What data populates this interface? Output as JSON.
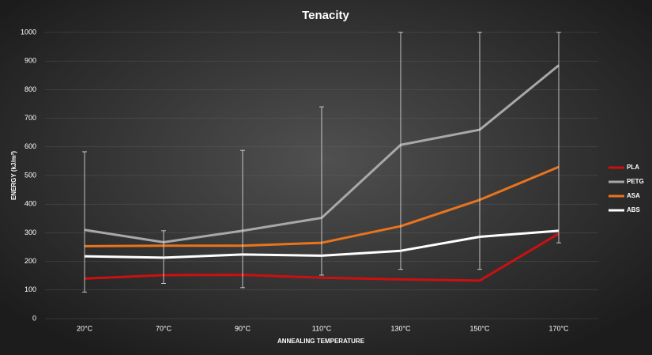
{
  "chart_data": {
    "type": "line",
    "title": "Tenacity",
    "x_label": "ANNEALING TEMPERATURE",
    "y_label": "ENERGY (kJ/m²)",
    "categories": [
      "20°C",
      "70°C",
      "90°C",
      "110°C",
      "130°C",
      "150°C",
      "170°C"
    ],
    "series": [
      {
        "name": "PLA",
        "color": "#cc1010",
        "values": [
          140,
          152,
          153,
          143,
          137,
          133,
          297
        ]
      },
      {
        "name": "PETG",
        "color": "#a8a8a8",
        "values": [
          310,
          267,
          307,
          352,
          607,
          660,
          885
        ]
      },
      {
        "name": "ASA",
        "color": "#e8741e",
        "values": [
          253,
          255,
          255,
          265,
          323,
          415,
          530
        ]
      },
      {
        "name": "ABS",
        "color": "#ffffff",
        "values": [
          218,
          213,
          224,
          220,
          237,
          286,
          307
        ]
      }
    ],
    "error_bars": {
      "color": "#e8e8e8",
      "low": [
        93,
        123,
        108,
        152,
        172,
        172,
        265
      ],
      "high": [
        583,
        307,
        588,
        740,
        1000,
        1000,
        1000
      ]
    },
    "ylim": [
      0,
      1000
    ],
    "yticks": [
      0,
      100,
      200,
      300,
      400,
      500,
      600,
      700,
      800,
      900,
      1000
    ],
    "grid": true,
    "legend": "right"
  }
}
